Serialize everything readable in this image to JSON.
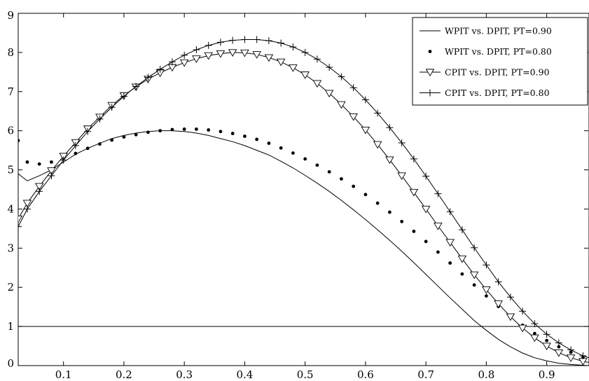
{
  "chart_data": {
    "type": "line",
    "title": "",
    "xlabel": "",
    "ylabel": "",
    "xlim": [
      0.025,
      0.97
    ],
    "ylim": [
      0,
      9
    ],
    "grid": false,
    "legend_position": "top-right",
    "xticks": [
      "0.1",
      "0.2",
      "0.3",
      "0.4",
      "0.5",
      "0.6",
      "0.7",
      "0.8",
      "0.9"
    ],
    "yticks": [
      "0",
      "1",
      "2",
      "3",
      "4",
      "5",
      "6",
      "7",
      "8",
      "9"
    ],
    "reference_line": {
      "y": 1
    },
    "series": [
      {
        "name": "WPIT vs. DPIT, PT=0.90",
        "style": "line",
        "color": "#000000",
        "x": [
          0.025,
          0.04,
          0.06,
          0.08,
          0.1,
          0.12,
          0.14,
          0.16,
          0.18,
          0.2,
          0.22,
          0.24,
          0.26,
          0.28,
          0.3,
          0.32,
          0.34,
          0.36,
          0.38,
          0.4,
          0.42,
          0.44,
          0.46,
          0.48,
          0.5,
          0.52,
          0.54,
          0.56,
          0.58,
          0.6,
          0.62,
          0.64,
          0.66,
          0.68,
          0.7,
          0.72,
          0.74,
          0.76,
          0.78,
          0.8,
          0.82,
          0.84,
          0.86,
          0.88,
          0.9,
          0.92,
          0.94,
          0.96,
          0.97
        ],
        "y": [
          4.9,
          4.72,
          4.85,
          5.0,
          5.2,
          5.4,
          5.55,
          5.68,
          5.8,
          5.88,
          5.94,
          5.98,
          6.0,
          6.0,
          5.98,
          5.94,
          5.88,
          5.8,
          5.72,
          5.62,
          5.5,
          5.38,
          5.22,
          5.05,
          4.86,
          4.66,
          4.45,
          4.22,
          3.98,
          3.73,
          3.47,
          3.2,
          2.92,
          2.63,
          2.33,
          2.03,
          1.73,
          1.44,
          1.15,
          0.9,
          0.67,
          0.48,
          0.32,
          0.2,
          0.12,
          0.06,
          0.03,
          0.01,
          0.0
        ]
      },
      {
        "name": "WPIT vs. DPIT, PT=0.80",
        "style": "dot",
        "color": "#000000",
        "x": [
          0.025,
          0.04,
          0.06,
          0.08,
          0.1,
          0.12,
          0.14,
          0.16,
          0.18,
          0.2,
          0.22,
          0.24,
          0.26,
          0.28,
          0.3,
          0.32,
          0.34,
          0.36,
          0.38,
          0.4,
          0.42,
          0.44,
          0.46,
          0.48,
          0.5,
          0.52,
          0.54,
          0.56,
          0.58,
          0.6,
          0.62,
          0.64,
          0.66,
          0.68,
          0.7,
          0.72,
          0.74,
          0.76,
          0.78,
          0.8,
          0.82,
          0.84,
          0.86,
          0.88,
          0.9,
          0.92,
          0.94,
          0.96
        ],
        "y": [
          5.75,
          5.2,
          5.15,
          5.2,
          5.3,
          5.42,
          5.55,
          5.66,
          5.76,
          5.84,
          5.9,
          5.96,
          6.0,
          6.03,
          6.04,
          6.04,
          6.02,
          5.98,
          5.93,
          5.86,
          5.78,
          5.68,
          5.56,
          5.43,
          5.28,
          5.12,
          4.95,
          4.77,
          4.58,
          4.37,
          4.15,
          3.92,
          3.68,
          3.43,
          3.17,
          2.9,
          2.62,
          2.34,
          2.06,
          1.78,
          1.51,
          1.26,
          1.03,
          0.82,
          0.64,
          0.48,
          0.34,
          0.2
        ]
      },
      {
        "name": "CPIT vs. DPIT, PT=0.90",
        "style": "line-triangle",
        "color": "#000000",
        "x": [
          0.025,
          0.04,
          0.06,
          0.08,
          0.1,
          0.12,
          0.14,
          0.16,
          0.18,
          0.2,
          0.22,
          0.24,
          0.26,
          0.28,
          0.3,
          0.32,
          0.34,
          0.36,
          0.38,
          0.4,
          0.42,
          0.44,
          0.46,
          0.48,
          0.5,
          0.52,
          0.54,
          0.56,
          0.58,
          0.6,
          0.62,
          0.64,
          0.66,
          0.68,
          0.7,
          0.72,
          0.74,
          0.76,
          0.78,
          0.8,
          0.82,
          0.84,
          0.86,
          0.88,
          0.9,
          0.92,
          0.94,
          0.96,
          0.97
        ],
        "y": [
          3.75,
          4.15,
          4.58,
          4.98,
          5.35,
          5.7,
          6.05,
          6.35,
          6.65,
          6.9,
          7.12,
          7.32,
          7.48,
          7.62,
          7.74,
          7.84,
          7.92,
          7.97,
          8.0,
          7.99,
          7.95,
          7.87,
          7.76,
          7.61,
          7.43,
          7.21,
          6.96,
          6.67,
          6.36,
          6.02,
          5.65,
          5.26,
          4.85,
          4.43,
          4.0,
          3.57,
          3.15,
          2.73,
          2.32,
          1.94,
          1.58,
          1.25,
          0.96,
          0.71,
          0.5,
          0.33,
          0.2,
          0.11,
          0.08
        ]
      },
      {
        "name": "CPIT vs. DPIT, PT=0.80",
        "style": "line-plus",
        "color": "#000000",
        "x": [
          0.025,
          0.04,
          0.06,
          0.08,
          0.1,
          0.12,
          0.14,
          0.16,
          0.18,
          0.2,
          0.22,
          0.24,
          0.26,
          0.28,
          0.3,
          0.32,
          0.34,
          0.36,
          0.38,
          0.4,
          0.42,
          0.44,
          0.46,
          0.48,
          0.5,
          0.52,
          0.54,
          0.56,
          0.58,
          0.6,
          0.62,
          0.64,
          0.66,
          0.68,
          0.7,
          0.72,
          0.74,
          0.76,
          0.78,
          0.8,
          0.82,
          0.84,
          0.86,
          0.88,
          0.9,
          0.92,
          0.94,
          0.96,
          0.97
        ],
        "y": [
          3.55,
          4.0,
          4.45,
          4.85,
          5.25,
          5.62,
          5.98,
          6.3,
          6.6,
          6.88,
          7.13,
          7.36,
          7.57,
          7.76,
          7.93,
          8.07,
          8.18,
          8.26,
          8.31,
          8.33,
          8.33,
          8.3,
          8.24,
          8.14,
          8.0,
          7.83,
          7.62,
          7.38,
          7.1,
          6.79,
          6.45,
          6.08,
          5.69,
          5.28,
          4.84,
          4.39,
          3.93,
          3.47,
          3.01,
          2.57,
          2.14,
          1.75,
          1.39,
          1.07,
          0.8,
          0.58,
          0.4,
          0.25,
          0.2
        ]
      }
    ]
  }
}
